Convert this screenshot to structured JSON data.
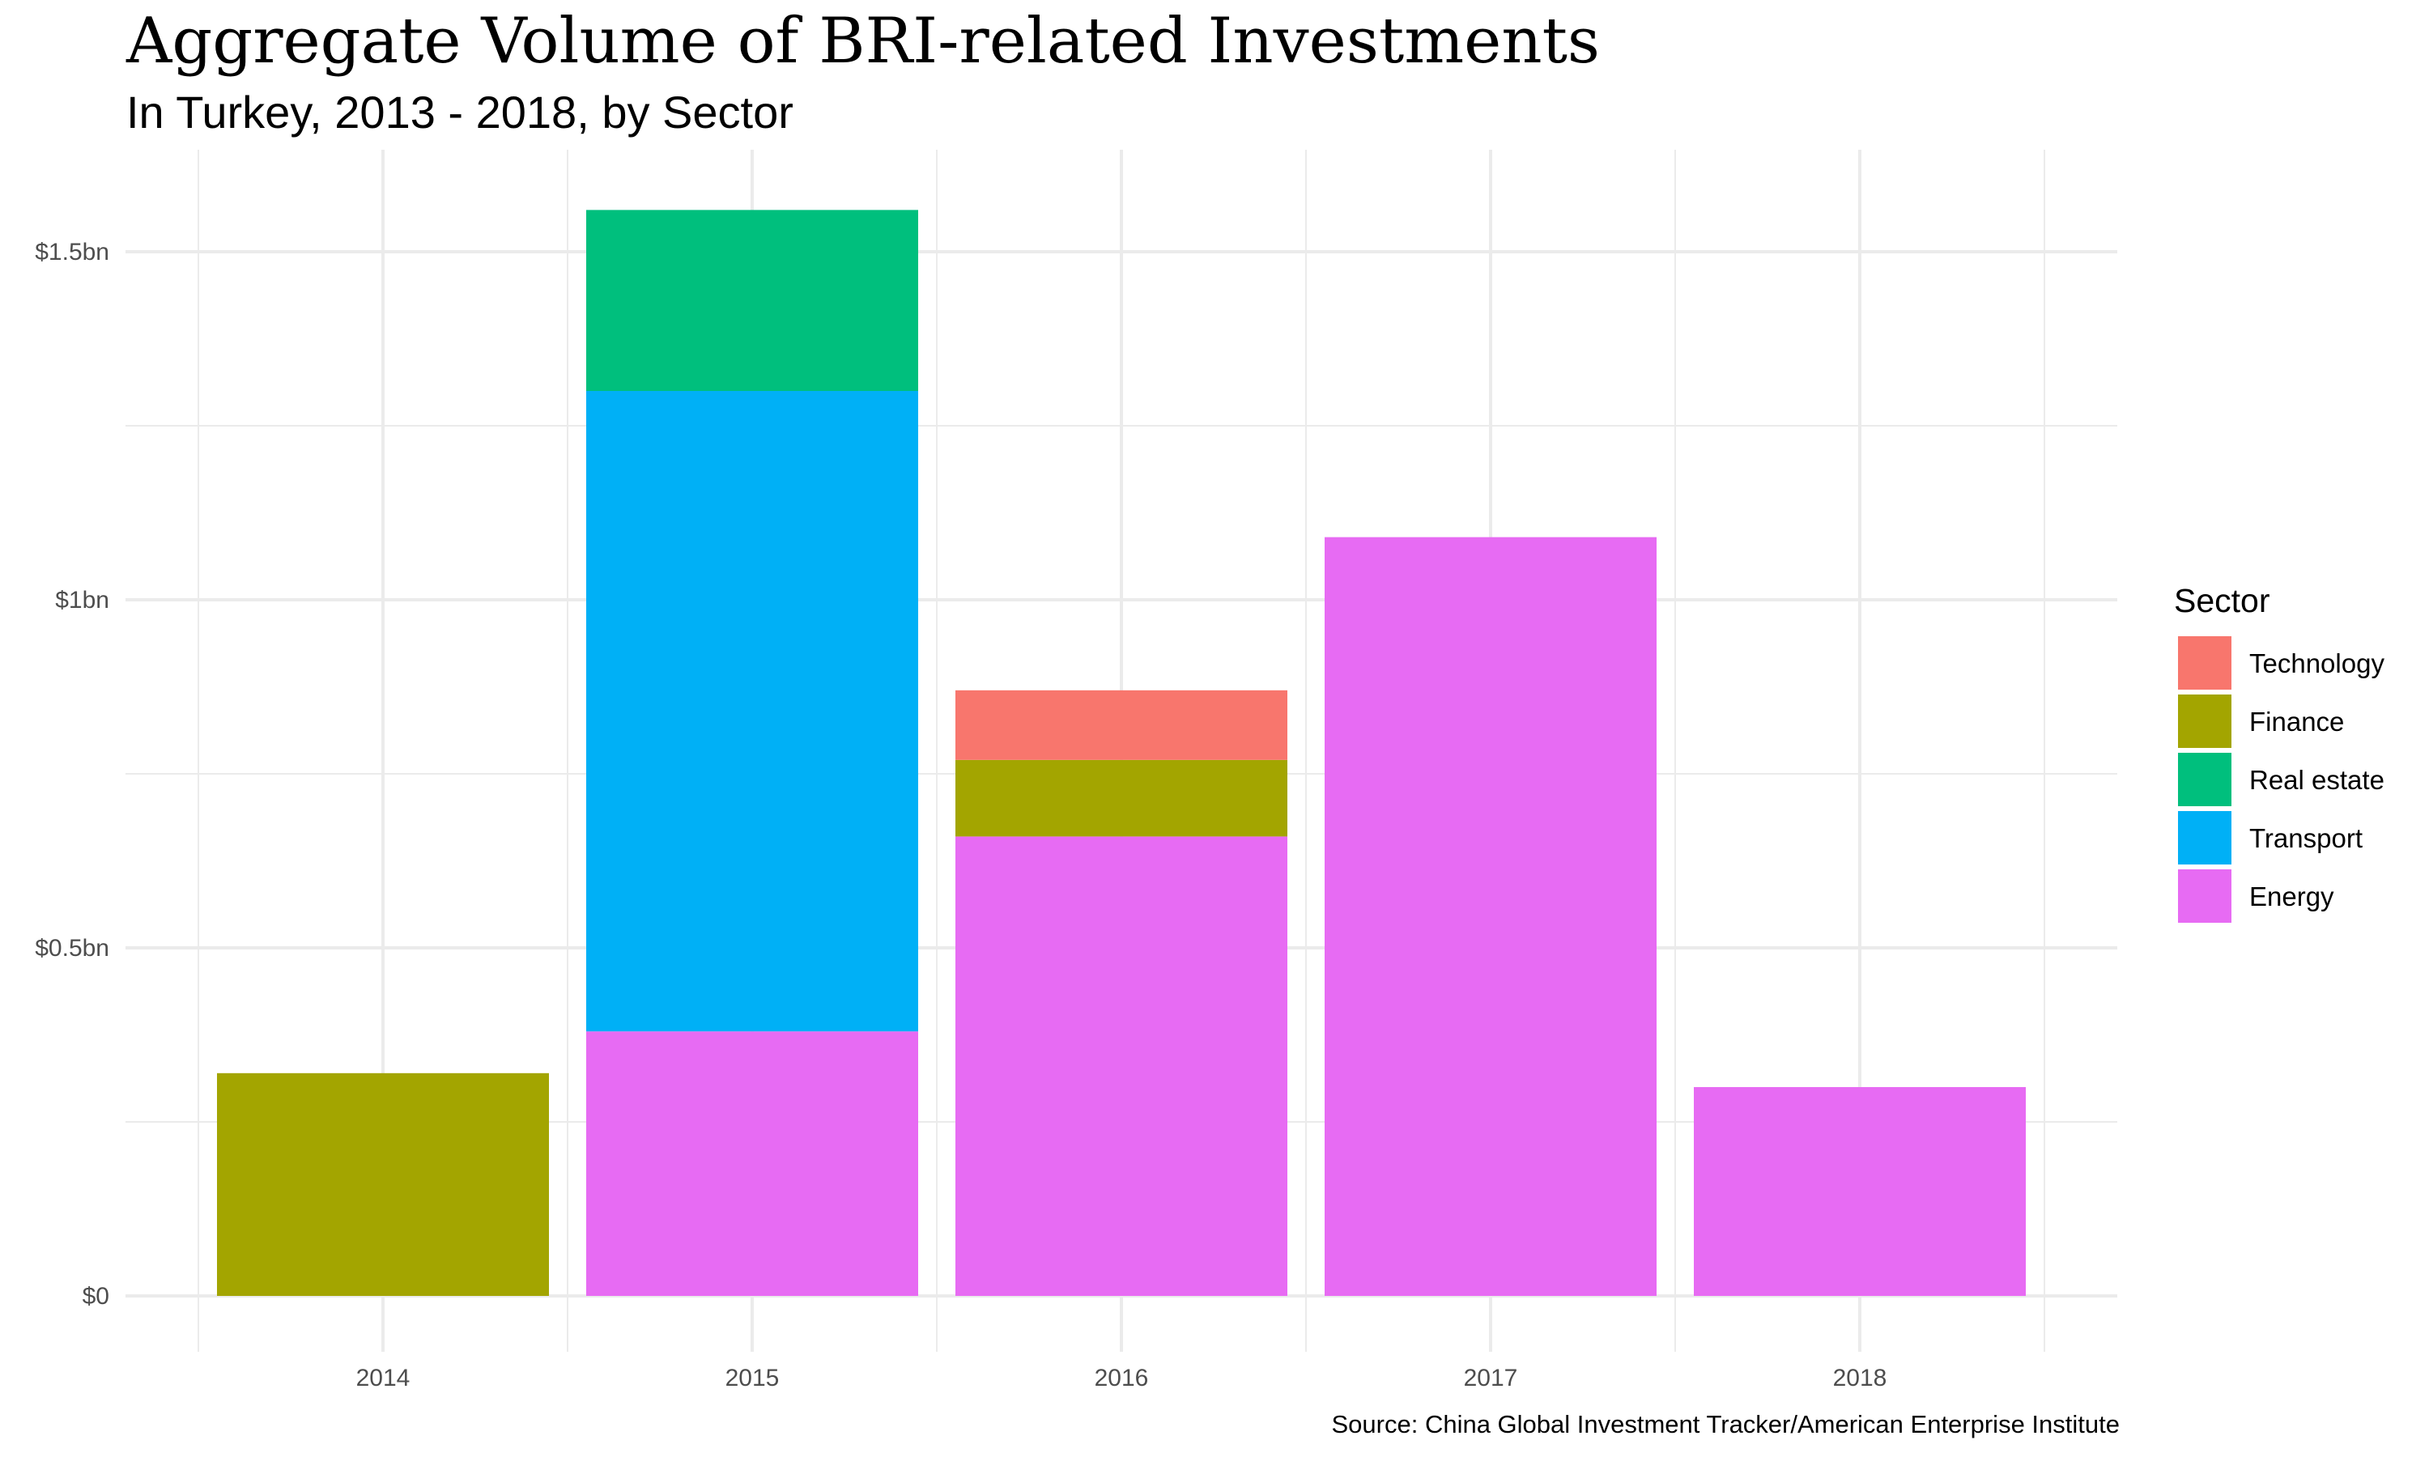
{
  "chart_data": {
    "type": "bar",
    "stacked": true,
    "title": "Aggregate Volume of BRI-related Investments",
    "subtitle": "In Turkey, 2013 - 2018, by Sector",
    "caption": "Source: China Global Investment Tracker/American Enterprise Institute",
    "xlabel": "",
    "ylabel": "",
    "categories": [
      "2014",
      "2015",
      "2016",
      "2017",
      "2018"
    ],
    "ylim": [
      0,
      1.6
    ],
    "y_ticks": [
      0,
      0.5,
      1.0,
      1.5
    ],
    "y_tick_labels": [
      "$0",
      "$0.5bn",
      "$1bn",
      "$1.5bn"
    ],
    "grid": true,
    "legend": {
      "title": "Sector",
      "position": "right"
    },
    "stack_order": [
      "Energy",
      "Transport",
      "Real estate",
      "Finance",
      "Technology"
    ],
    "legend_order": [
      "Technology",
      "Finance",
      "Real estate",
      "Transport",
      "Energy"
    ],
    "series": [
      {
        "name": "Technology",
        "color": "#F8766D",
        "values": [
          0,
          0,
          0.1,
          0,
          0
        ]
      },
      {
        "name": "Finance",
        "color": "#A3A500",
        "values": [
          0.32,
          0,
          0.11,
          0,
          0
        ]
      },
      {
        "name": "Real estate",
        "color": "#00BF7D",
        "values": [
          0,
          0.26,
          0,
          0,
          0
        ]
      },
      {
        "name": "Transport",
        "color": "#00B0F6",
        "values": [
          0,
          0.92,
          0,
          0,
          0
        ]
      },
      {
        "name": "Energy",
        "color": "#E76BF3",
        "values": [
          0,
          0.38,
          0.66,
          1.09,
          0.3
        ]
      }
    ]
  }
}
